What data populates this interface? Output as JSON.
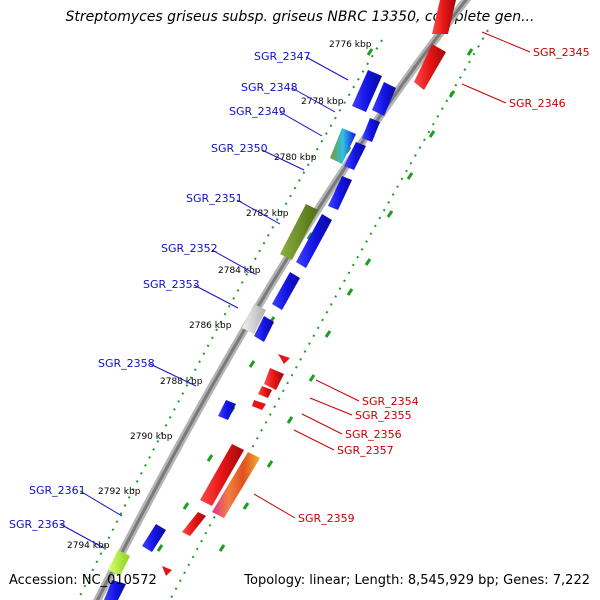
{
  "title": "Streptomyces griseus subsp. griseus NBRC 13350, complete gen...",
  "footer": {
    "accession": "Accession: NC_010572",
    "summary": "Topology: linear; Length: 8,545,929 bp; Genes: 7,222"
  },
  "colors": {
    "forward_gene": "#1414e6",
    "reverse_gene": "#e61414",
    "backbone": "#8c8c8c",
    "guide_dots": "#1e9e1e",
    "forward_label": "#1010c8",
    "reverse_label": "#c80000"
  },
  "ticks": [
    "2776 kbp",
    "2778 kbp",
    "2780 kbp",
    "2782 kbp",
    "2784 kbp",
    "2786 kbp",
    "2788 kbp",
    "2790 kbp",
    "2792 kbp",
    "2794 kbp"
  ],
  "forward_labels": [
    "SGR_2347",
    "SGR_2348",
    "SGR_2349",
    "SGR_2350",
    "SGR_2351",
    "SGR_2352",
    "SGR_2353",
    "SGR_2358",
    "SGR_2361",
    "SGR_2363"
  ],
  "reverse_labels": [
    "SGR_2345",
    "SGR_2346",
    "SGR_2354",
    "SGR_2355",
    "SGR_2356",
    "SGR_2357",
    "SGR_2359"
  ]
}
